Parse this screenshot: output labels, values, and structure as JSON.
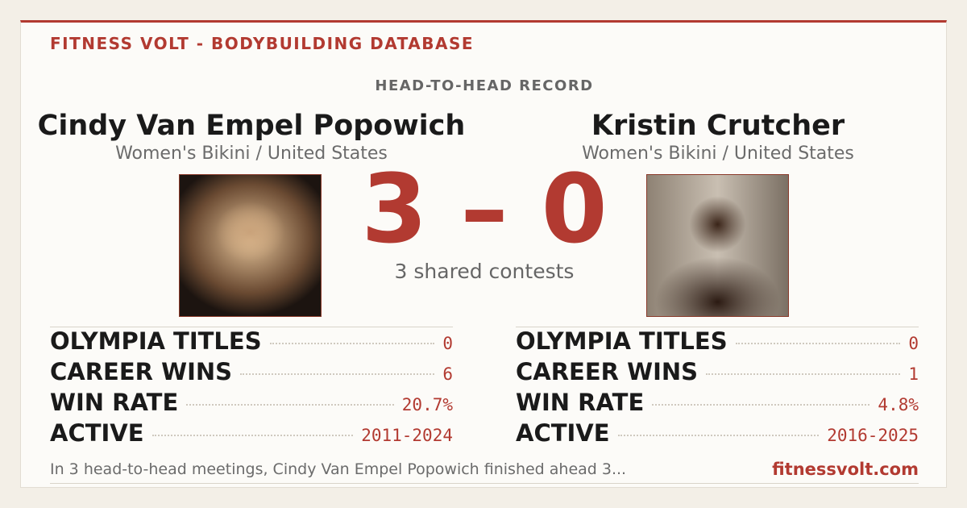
{
  "header": {
    "brand": "FITNESS VOLT - BODYBUILDING DATABASE",
    "section": "HEAD-TO-HEAD RECORD"
  },
  "athletes": [
    {
      "name": "Cindy Van Empel Popowich",
      "division": "Women's Bikini / United States",
      "stats": [
        {
          "label": "OLYMPIA TITLES",
          "value": "0"
        },
        {
          "label": "CAREER WINS",
          "value": "6"
        },
        {
          "label": "WIN RATE",
          "value": "20.7%"
        },
        {
          "label": "ACTIVE",
          "value": "2011-2024"
        }
      ]
    },
    {
      "name": "Kristin Crutcher",
      "division": "Women's Bikini / United States",
      "stats": [
        {
          "label": "OLYMPIA TITLES",
          "value": "0"
        },
        {
          "label": "CAREER WINS",
          "value": "1"
        },
        {
          "label": "WIN RATE",
          "value": "4.8%"
        },
        {
          "label": "ACTIVE",
          "value": "2016-2025"
        }
      ]
    }
  ],
  "score": "3 – 0",
  "shared": "3 shared contests",
  "footer": {
    "summary": "In 3 head-to-head meetings, Cindy Van Empel Popowich finished ahead 3...",
    "site": "fitnessvolt.com"
  }
}
